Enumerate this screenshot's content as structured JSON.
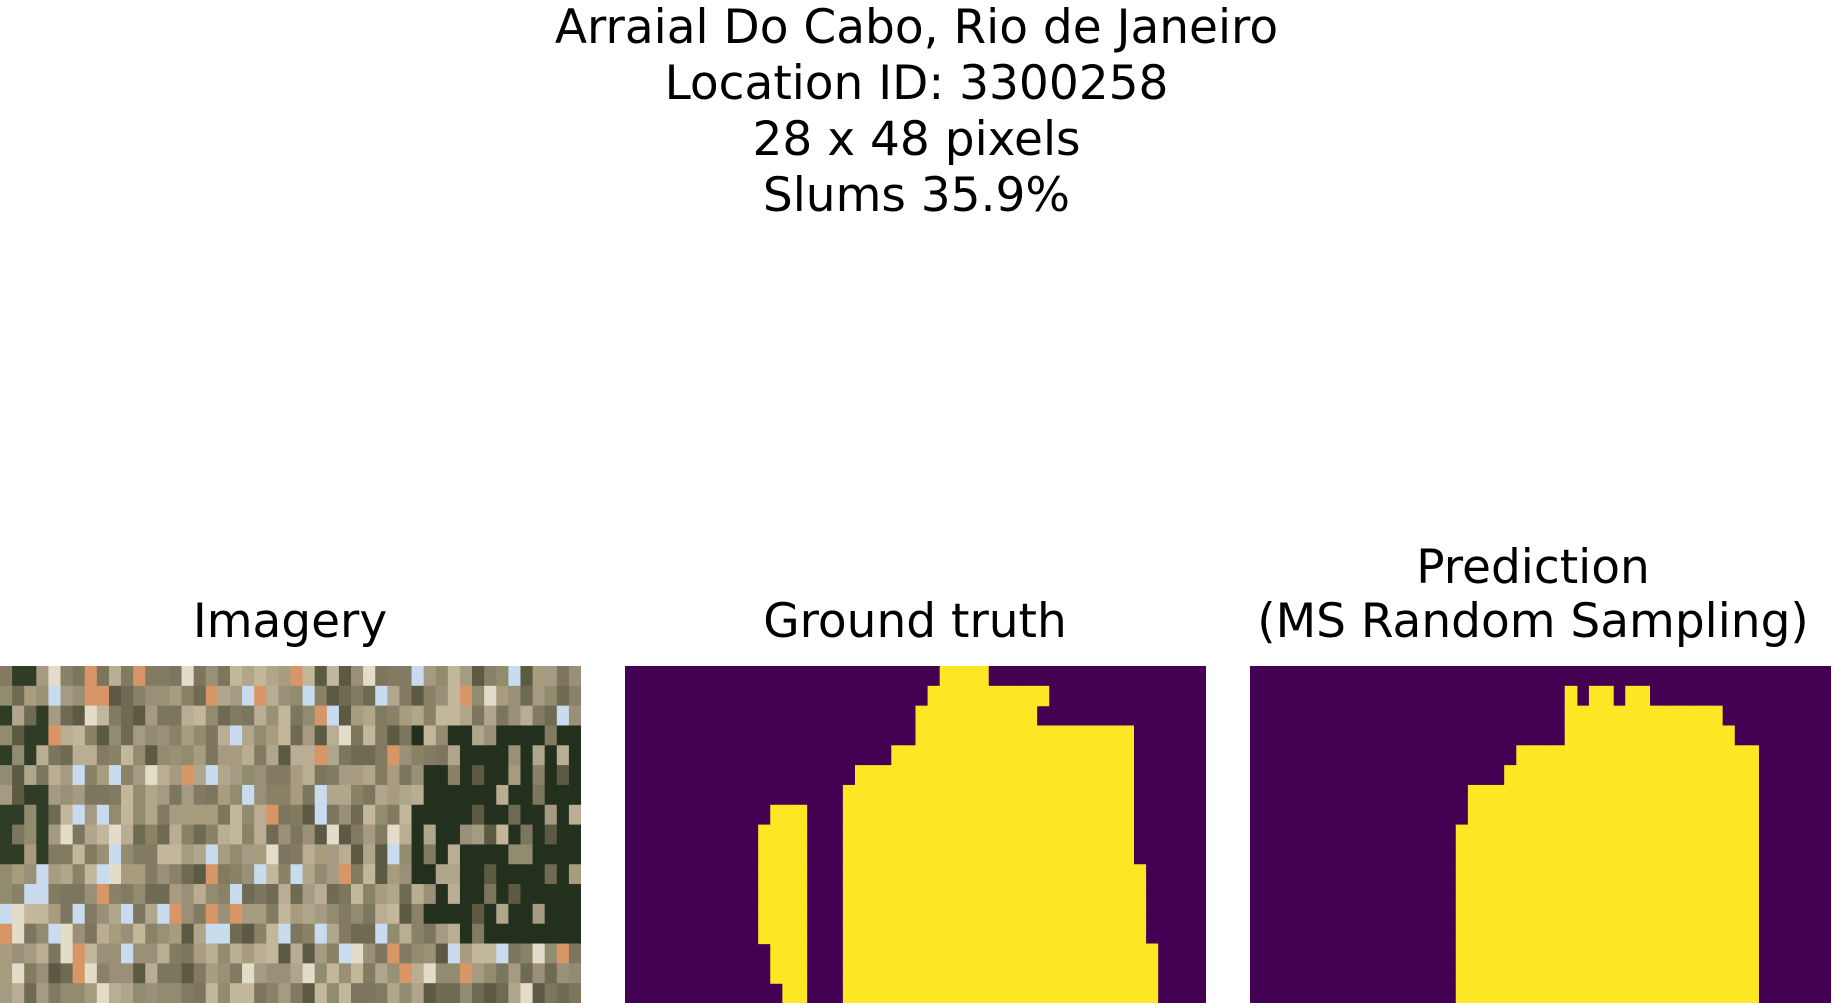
{
  "title": {
    "location": "Arraial Do Cabo, Rio de Janeiro",
    "location_id": "Location ID: 3300258",
    "size": "28 x 48 pixels",
    "slums": "Slums 35.9%"
  },
  "panels": {
    "imagery": {
      "title": "Imagery"
    },
    "ground_truth": {
      "title": "Ground truth"
    },
    "prediction": {
      "title_line1": "Prediction",
      "title_line2": "(MS Random Sampling)"
    }
  },
  "colors": {
    "background_class": "#440154",
    "slum_class": "#fde725"
  },
  "grid": {
    "cols": 48,
    "rows": 28,
    "visible_rows": 17
  },
  "ground_truth_mask": [
    "000000000000000000000000001111000000000000000000",
    "000000000000000000000000011111111110000000000000",
    "000000000000000000000000111111111100000000000000",
    "000000000000000000000000111111111111111111000000",
    "000000000000000000000011111111111111111111000000",
    "000000000000000000011111111111111111111111000000",
    "000000000000000000111111111111111111111111000000",
    "000000000000111000111111111111111111111111000000",
    "000000000001111000111111111111111111111111000000",
    "000000000001111000111111111111111111111111000000",
    "000000000001111000111111111111111111111111100000",
    "000000000001111000111111111111111111111111100000",
    "000000000001111000111111111111111111111111100000",
    "000000000001111000111111111111111111111111100000",
    "000000000000111000111111111111111111111111110000",
    "000000000000111000111111111111111111111111110000",
    "000000000000011000111111111111111111111111110000"
  ],
  "prediction_mask": [
    "000000000000000000000000000000000000000000000000",
    "000000000000000000000000001011011000000000000000",
    "000000000000000000000000001111111111111000000000",
    "000000000000000000000000001111111111111100000000",
    "000000000000000000000011111111111111111111000000",
    "000000000000000000000111111111111111111111000000",
    "000000000000000000111111111111111111111111000000",
    "000000000000000000111111111111111111111111000000",
    "000000000000000001111111111111111111111111000000",
    "000000000000000001111111111111111111111111000000",
    "000000000000000001111111111111111111111111000000",
    "000000000000000001111111111111111111111111000000",
    "000000000000000001111111111111111111111111000000",
    "000000000000000001111111111111111111111111000000",
    "000000000000000001111111111111111111111111000000",
    "000000000000000001111111111111111111111111000000",
    "000000000000000001111111111111111111111111000000"
  ]
}
